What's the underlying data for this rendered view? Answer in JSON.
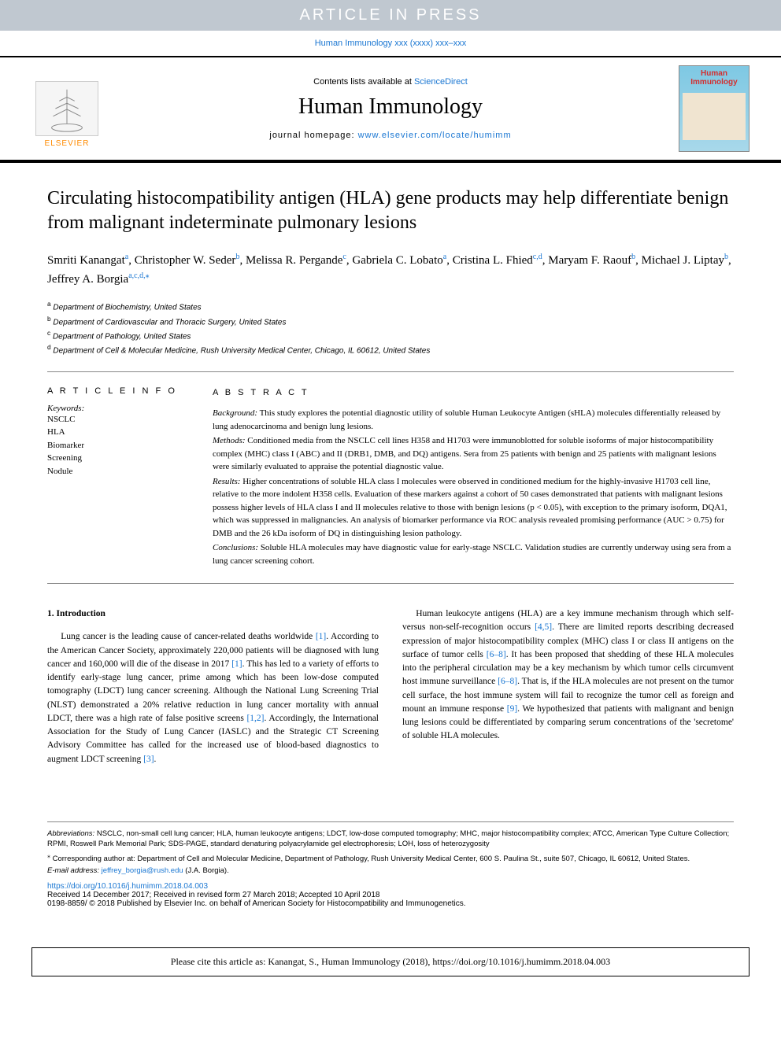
{
  "banner": {
    "text": "ARTICLE IN PRESS",
    "bg_color": "#c0c8d0",
    "text_color": "#ffffff"
  },
  "running_head": {
    "prefix": "Human Immunology xxx (xxxx) xxx–xxx",
    "link_color": "#1976d2"
  },
  "header": {
    "contents_text": "Contents lists available at ",
    "sciencedirect": "ScienceDirect",
    "journal_name": "Human Immunology",
    "homepage_label": "journal homepage: ",
    "homepage_url": "www.elsevier.com/locate/humimm",
    "elsevier_label": "ELSEVIER",
    "cover_title": "Human Immunology"
  },
  "article": {
    "title": "Circulating histocompatibility antigen (HLA) gene products may help differentiate benign from malignant indeterminate pulmonary lesions",
    "authors_html": "Smriti Kanangat<sup>a</sup>, Christopher W. Seder<sup>b</sup>, Melissa R. Pergande<sup>c</sup>, Gabriela C. Lobato<sup>a</sup>, Cristina L. Fhied<sup>c,d</sup>, Maryam F. Raouf<sup>b</sup>, Michael J. Liptay<sup>b</sup>, Jeffrey A. Borgia<sup>a,c,d,</sup><sup>⁎</sup>",
    "affiliations": [
      {
        "sup": "a",
        "text": "Department of Biochemistry, United States"
      },
      {
        "sup": "b",
        "text": "Department of Cardiovascular and Thoracic Surgery, United States"
      },
      {
        "sup": "c",
        "text": "Department of Pathology, United States"
      },
      {
        "sup": "d",
        "text": "Department of Cell & Molecular Medicine, Rush University Medical Center, Chicago, IL 60612, United States"
      }
    ]
  },
  "article_info": {
    "heading": "A R T I C L E  I N F O",
    "keywords_label": "Keywords:",
    "keywords": [
      "NSCLC",
      "HLA",
      "Biomarker",
      "Screening",
      "Nodule"
    ]
  },
  "abstract": {
    "heading": "A B S T R A C T",
    "sections": [
      {
        "label": "Background:",
        "text": " This study explores the potential diagnostic utility of soluble Human Leukocyte Antigen (sHLA) molecules differentially released by lung adenocarcinoma and benign lung lesions."
      },
      {
        "label": "Methods:",
        "text": " Conditioned media from the NSCLC cell lines H358 and H1703 were immunoblotted for soluble isoforms of major histocompatibility complex (MHC) class I (ABC) and II (DRB1, DMB, and DQ) antigens. Sera from 25 patients with benign and 25 patients with malignant lesions were similarly evaluated to appraise the potential diagnostic value."
      },
      {
        "label": "Results:",
        "text": " Higher concentrations of soluble HLA class I molecules were observed in conditioned medium for the highly-invasive H1703 cell line, relative to the more indolent H358 cells. Evaluation of these markers against a cohort of 50 cases demonstrated that patients with malignant lesions possess higher levels of HLA class I and II molecules relative to those with benign lesions (p < 0.05), with exception to the primary isoform, DQA1, which was suppressed in malignancies. An analysis of biomarker performance via ROC analysis revealed promising performance (AUC > 0.75) for DMB and the 26 kDa isoform of DQ in distinguishing lesion pathology."
      },
      {
        "label": "Conclusions:",
        "text": " Soluble HLA molecules may have diagnostic value for early-stage NSCLC. Validation studies are currently underway using sera from a lung cancer screening cohort."
      }
    ]
  },
  "introduction": {
    "heading": "1. Introduction",
    "p1_a": "Lung cancer is the leading cause of cancer-related deaths worldwide ",
    "p1_ref1": "[1]",
    "p1_b": ". According to the American Cancer Society, approximately 220,000 patients will be diagnosed with lung cancer and 160,000 will die of the disease in 2017 ",
    "p1_ref2": "[1]",
    "p1_c": ". This has led to a variety of efforts to identify early-stage lung cancer, prime among which has been low-dose computed tomography (LDCT) lung cancer screening. Although the National Lung Screening Trial (NLST) demonstrated a 20% relative reduction in lung cancer mortality with annual LDCT, there was a high rate of false positive screens ",
    "p1_ref3": "[1,2]",
    "p1_d": ". Accordingly, the International Association for the Study of Lung Cancer (IASLC) and the Strategic CT Screening Advisory Committee has called for the increased use of blood-based diagnostics to augment LDCT screening ",
    "p1_ref4": "[3]",
    "p1_e": ".",
    "p2_a": "Human leukocyte antigens (HLA) are a key immune mechanism through which self- versus non-self-recognition occurs ",
    "p2_ref1": "[4,5]",
    "p2_b": ". There are limited reports describing decreased expression of major histocompatibility complex (MHC) class I or class II antigens on the surface of tumor cells ",
    "p2_ref2": "[6–8]",
    "p2_c": ". It has been proposed that shedding of these HLA molecules into the peripheral circulation may be a key mechanism by which tumor cells circumvent host immune surveillance ",
    "p2_ref3": "[6–8]",
    "p2_d": ". That is, if the HLA molecules are not present on the tumor cell surface, the host immune system will fail to recognize the tumor cell as foreign and mount an immune response ",
    "p2_ref4": "[9]",
    "p2_e": ". We hypothesized that patients with malignant and benign lung lesions could be differentiated by comparing serum concentrations of the 'secretome' of soluble HLA molecules."
  },
  "footer": {
    "abbrev_label": "Abbreviations:",
    "abbrev_text": " NSCLC, non-small cell lung cancer; HLA, human leukocyte antigens; LDCT, low-dose computed tomography; MHC, major histocompatibility complex; ATCC, American Type Culture Collection; RPMI, Roswell Park Memorial Park; SDS-PAGE, standard denaturing polyacrylamide gel electrophoresis; LOH, loss of heterozygosity",
    "corr_symbol": "⁎",
    "corr_text": " Corresponding author at: Department of Cell and Molecular Medicine, Department of Pathology, Rush University Medical Center, 600 S. Paulina St., suite 507, Chicago, IL 60612, United States.",
    "email_label": "E-mail address: ",
    "email": "jeffrey_borgia@rush.edu",
    "email_name": " (J.A. Borgia).",
    "doi": "https://doi.org/10.1016/j.humimm.2018.04.003",
    "received": "Received 14 December 2017; Received in revised form 27 March 2018; Accepted 10 April 2018",
    "copyright": "0198-8859/ © 2018 Published by Elsevier Inc. on behalf of American Society for Histocompatibility and Immunogenetics."
  },
  "cite_box": "Please cite this article as: Kanangat, S., Human Immunology (2018), https://doi.org/10.1016/j.humimm.2018.04.003",
  "colors": {
    "link": "#1976d2",
    "banner_bg": "#c0c8d0",
    "text": "#000000"
  },
  "typography": {
    "title_fontsize": 24,
    "body_fontsize": 11.5,
    "abstract_fontsize": 11,
    "footer_fontsize": 9.5
  }
}
